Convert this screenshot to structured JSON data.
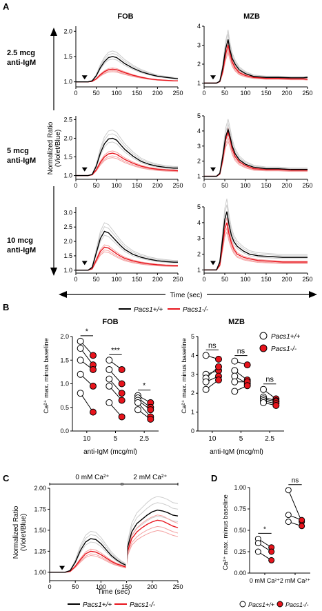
{
  "panel_labels": {
    "a": "A",
    "b": "B",
    "c": "C",
    "d": "D"
  },
  "panelA": {
    "columns": [
      "FOB",
      "MZB"
    ],
    "row_labels": [
      [
        "2.5 mcg",
        "anti-IgM"
      ],
      [
        "5 mcg",
        "anti-IgM"
      ],
      [
        "10 mcg",
        "anti-IgM"
      ]
    ],
    "y_axis_label": [
      "Normalized Ratio",
      "(Violet/Blue)"
    ],
    "x_axis_label": "Time (sec)",
    "legend": [
      {
        "label": "Pacs1+/+",
        "color": "#000000"
      },
      {
        "label": "Pacs1-/-",
        "color": "#e8141c"
      }
    ]
  },
  "panelB": {
    "titles": [
      "FOB",
      "MZB"
    ],
    "ylabel": "Ca²⁺ max. minus baseline",
    "xlabel": "anti-IgM (mcg/ml)",
    "legend": [
      "Pacs1+/+",
      "Pacs1-/-"
    ],
    "significance_fob": [
      "*",
      "***",
      "*"
    ],
    "significance_mzb": [
      "ns",
      "ns",
      "ns"
    ]
  },
  "panelC": {
    "brackets": [
      "0 mM Ca²⁺",
      "2 mM Ca²⁺"
    ],
    "ylabel": [
      "Normalized Ratio",
      "(Violet/Blue)"
    ],
    "xlabel": "Time (sec)",
    "legend": [
      "Pacs1+/+",
      "Pacs1-/-"
    ]
  },
  "panelD": {
    "ylabel": "Ca²⁺ max. minus baseline",
    "significance": [
      "*",
      "ns"
    ],
    "legend": [
      "Pacs1+/+",
      "Pacs1-/-"
    ]
  },
  "colors": {
    "wt": "#000000",
    "ko": "#e8141c",
    "wt_light": "#cccccc",
    "ko_light": "#f4a0a0"
  },
  "chart_data": [
    {
      "id": "A1",
      "type": "line",
      "title": "FOB",
      "xlim": [
        0,
        250
      ],
      "ylim": [
        0.9,
        2.1
      ],
      "yticks": [
        1.0,
        1.5,
        2.0
      ],
      "xticks": [
        0,
        50,
        100,
        150,
        200,
        250
      ],
      "stim_time": 35,
      "series": [
        {
          "name": "Pacs1+/+",
          "x": [
            0,
            30,
            40,
            50,
            60,
            70,
            80,
            90,
            100,
            110,
            120,
            140,
            160,
            180,
            200,
            220,
            240,
            250
          ],
          "y": [
            1.0,
            1.0,
            1.02,
            1.12,
            1.28,
            1.4,
            1.48,
            1.5,
            1.48,
            1.42,
            1.36,
            1.27,
            1.2,
            1.15,
            1.11,
            1.09,
            1.07,
            1.06
          ]
        },
        {
          "name": "Pacs1-/-",
          "x": [
            0,
            30,
            40,
            50,
            60,
            70,
            80,
            90,
            100,
            110,
            120,
            140,
            160,
            180,
            200,
            220,
            240,
            250
          ],
          "y": [
            1.0,
            1.0,
            1.01,
            1.06,
            1.14,
            1.2,
            1.24,
            1.25,
            1.24,
            1.21,
            1.18,
            1.13,
            1.09,
            1.06,
            1.04,
            1.03,
            1.02,
            1.02
          ]
        }
      ]
    },
    {
      "id": "A2",
      "type": "line",
      "title": "MZB",
      "xlim": [
        0,
        250
      ],
      "ylim": [
        0.8,
        4.0
      ],
      "yticks": [
        1,
        2,
        3,
        4
      ],
      "xticks": [
        0,
        50,
        100,
        150,
        200,
        250
      ],
      "stim_time": 35,
      "series": [
        {
          "name": "Pacs1+/+",
          "x": [
            0,
            30,
            38,
            45,
            52,
            58,
            62,
            68,
            75,
            85,
            100,
            120,
            150,
            180,
            210,
            240,
            250
          ],
          "y": [
            1.0,
            1.0,
            1.1,
            1.8,
            2.8,
            3.3,
            2.8,
            2.3,
            2.0,
            1.7,
            1.5,
            1.35,
            1.3,
            1.3,
            1.28,
            1.28,
            1.3
          ]
        },
        {
          "name": "Pacs1-/-",
          "x": [
            0,
            30,
            38,
            45,
            52,
            58,
            62,
            68,
            75,
            85,
            100,
            120,
            150,
            180,
            210,
            240,
            250
          ],
          "y": [
            1.0,
            1.0,
            1.08,
            1.6,
            2.5,
            3.0,
            2.6,
            2.1,
            1.8,
            1.55,
            1.4,
            1.3,
            1.25,
            1.25,
            1.22,
            1.22,
            1.2
          ]
        }
      ]
    },
    {
      "id": "A3",
      "type": "line",
      "title": "FOB",
      "xlim": [
        0,
        250
      ],
      "ylim": [
        0.9,
        2.6
      ],
      "yticks": [
        1.0,
        1.5,
        2.0,
        2.5
      ],
      "xticks": [
        0,
        50,
        100,
        150,
        200,
        250
      ],
      "stim_time": 35,
      "series": [
        {
          "name": "Pacs1+/+",
          "x": [
            0,
            30,
            40,
            50,
            60,
            70,
            80,
            90,
            100,
            110,
            120,
            140,
            160,
            180,
            200,
            220,
            240,
            250
          ],
          "y": [
            1.0,
            1.0,
            1.03,
            1.25,
            1.6,
            1.85,
            1.98,
            2.0,
            1.95,
            1.82,
            1.7,
            1.52,
            1.38,
            1.3,
            1.25,
            1.22,
            1.2,
            1.2
          ]
        },
        {
          "name": "Pacs1-/-",
          "x": [
            0,
            30,
            40,
            50,
            60,
            70,
            80,
            90,
            100,
            110,
            120,
            140,
            160,
            180,
            200,
            220,
            240,
            250
          ],
          "y": [
            1.0,
            1.0,
            1.02,
            1.15,
            1.35,
            1.5,
            1.58,
            1.6,
            1.57,
            1.5,
            1.43,
            1.33,
            1.25,
            1.2,
            1.17,
            1.15,
            1.14,
            1.13
          ]
        }
      ]
    },
    {
      "id": "A4",
      "type": "line",
      "title": "MZB",
      "xlim": [
        0,
        250
      ],
      "ylim": [
        0.8,
        5.0
      ],
      "yticks": [
        1,
        2,
        3,
        4,
        5
      ],
      "xticks": [
        0,
        50,
        100,
        150,
        200,
        250
      ],
      "stim_time": 35,
      "series": [
        {
          "name": "Pacs1+/+",
          "x": [
            0,
            30,
            38,
            45,
            52,
            58,
            63,
            68,
            75,
            85,
            100,
            120,
            150,
            180,
            210,
            240,
            250
          ],
          "y": [
            1.0,
            1.0,
            1.2,
            2.3,
            3.6,
            4.1,
            3.6,
            3.0,
            2.5,
            2.1,
            1.8,
            1.6,
            1.5,
            1.5,
            1.45,
            1.45,
            1.45
          ]
        },
        {
          "name": "Pacs1-/-",
          "x": [
            0,
            30,
            38,
            45,
            52,
            58,
            63,
            68,
            75,
            85,
            100,
            120,
            150,
            180,
            210,
            240,
            250
          ],
          "y": [
            1.0,
            1.0,
            1.15,
            2.1,
            3.4,
            3.9,
            3.4,
            2.8,
            2.3,
            1.95,
            1.7,
            1.5,
            1.45,
            1.45,
            1.4,
            1.4,
            1.4
          ]
        }
      ]
    },
    {
      "id": "A5",
      "type": "line",
      "title": "FOB",
      "xlim": [
        0,
        250
      ],
      "ylim": [
        0.9,
        3.2
      ],
      "yticks": [
        1.0,
        1.5,
        2.0,
        2.5,
        3.0
      ],
      "xticks": [
        0,
        50,
        100,
        150,
        200,
        250
      ],
      "stim_time": 35,
      "series": [
        {
          "name": "Pacs1+/+",
          "x": [
            0,
            30,
            40,
            50,
            60,
            70,
            80,
            90,
            100,
            110,
            120,
            140,
            160,
            180,
            200,
            220,
            240,
            250
          ],
          "y": [
            1.0,
            1.0,
            1.1,
            1.6,
            2.1,
            2.35,
            2.3,
            2.15,
            2.0,
            1.85,
            1.72,
            1.55,
            1.45,
            1.38,
            1.33,
            1.3,
            1.28,
            1.28
          ]
        },
        {
          "name": "Pacs1-/-",
          "x": [
            0,
            30,
            40,
            50,
            60,
            70,
            80,
            90,
            100,
            110,
            120,
            140,
            160,
            180,
            200,
            220,
            240,
            250
          ],
          "y": [
            1.0,
            1.0,
            1.05,
            1.35,
            1.65,
            1.8,
            1.77,
            1.67,
            1.57,
            1.48,
            1.41,
            1.32,
            1.26,
            1.22,
            1.19,
            1.17,
            1.16,
            1.16
          ]
        }
      ]
    },
    {
      "id": "A6",
      "type": "line",
      "title": "MZB",
      "xlim": [
        0,
        250
      ],
      "ylim": [
        0.8,
        5.0
      ],
      "yticks": [
        1,
        2,
        3,
        4,
        5
      ],
      "xticks": [
        0,
        50,
        100,
        150,
        200,
        250
      ],
      "stim_time": 35,
      "series": [
        {
          "name": "Pacs1+/+",
          "x": [
            0,
            30,
            38,
            44,
            50,
            55,
            60,
            66,
            72,
            80,
            95,
            110,
            130,
            160,
            190,
            220,
            250
          ],
          "y": [
            1.0,
            1.0,
            1.5,
            2.8,
            4.2,
            4.7,
            3.9,
            3.2,
            2.8,
            2.5,
            2.2,
            2.0,
            1.9,
            1.85,
            1.8,
            1.8,
            1.8
          ]
        },
        {
          "name": "Pacs1-/-",
          "x": [
            0,
            30,
            38,
            44,
            50,
            55,
            60,
            66,
            72,
            80,
            95,
            110,
            130,
            160,
            190,
            220,
            250
          ],
          "y": [
            1.0,
            1.0,
            1.3,
            2.4,
            3.6,
            4.0,
            3.3,
            2.7,
            2.3,
            2.0,
            1.8,
            1.7,
            1.6,
            1.55,
            1.5,
            1.5,
            1.5
          ]
        }
      ]
    },
    {
      "id": "B1",
      "type": "scatter",
      "title": "FOB",
      "ylabel": "Ca²⁺ max. minus baseline",
      "xlabel": "anti-IgM (mcg/ml)",
      "categories": [
        "10",
        "5",
        "2.5"
      ],
      "ylim": [
        0,
        2
      ],
      "yticks": [
        0.0,
        0.5,
        1.0,
        1.5,
        2.0
      ],
      "pairs": [
        [
          [
            1.9,
            1.6
          ],
          [
            1.75,
            1.4
          ],
          [
            1.5,
            1.3
          ],
          [
            1.2,
            0.95
          ],
          [
            0.8,
            0.4
          ]
        ],
        [
          [
            1.5,
            1.3
          ],
          [
            1.3,
            1.0
          ],
          [
            1.1,
            0.8
          ],
          [
            0.95,
            0.65
          ],
          [
            0.6,
            0.3
          ]
        ],
        [
          [
            0.75,
            0.6
          ],
          [
            0.7,
            0.5
          ],
          [
            0.65,
            0.45
          ],
          [
            0.6,
            0.3
          ],
          [
            0.45,
            0.25
          ]
        ]
      ]
    },
    {
      "id": "B2",
      "type": "scatter",
      "title": "MZB",
      "ylabel": "Ca²⁺ max. minus baseline",
      "xlabel": "anti-IgM (mcg/ml)",
      "categories": [
        "10",
        "5",
        "2.5"
      ],
      "ylim": [
        0,
        5
      ],
      "yticks": [
        0,
        1,
        2,
        3,
        4,
        5
      ],
      "pairs": [
        [
          [
            4.0,
            3.8
          ],
          [
            3.0,
            3.2
          ],
          [
            2.8,
            3.4
          ],
          [
            2.6,
            2.9
          ],
          [
            2.2,
            2.7
          ]
        ],
        [
          [
            3.7,
            3.5
          ],
          [
            3.2,
            2.7
          ],
          [
            2.9,
            2.5
          ],
          [
            2.6,
            2.6
          ],
          [
            2.1,
            2.4
          ]
        ],
        [
          [
            2.2,
            1.7
          ],
          [
            1.8,
            1.6
          ],
          [
            1.7,
            1.55
          ],
          [
            1.6,
            1.45
          ],
          [
            1.5,
            1.35
          ]
        ]
      ]
    },
    {
      "id": "C",
      "type": "line",
      "xlim": [
        0,
        250
      ],
      "ylim": [
        0.9,
        2.0
      ],
      "yticks": [
        1.0,
        1.25,
        1.5,
        1.75,
        2.0
      ],
      "xticks": [
        0,
        50,
        100,
        150,
        200,
        250
      ],
      "stim_time": 35,
      "switch_time": 150,
      "series": [
        {
          "name": "Pacs1+/+",
          "x": [
            0,
            30,
            40,
            50,
            60,
            70,
            80,
            90,
            100,
            110,
            120,
            130,
            140,
            150,
            152,
            160,
            170,
            180,
            190,
            200,
            210,
            220,
            230,
            240,
            250
          ],
          "y": [
            1.0,
            1.0,
            1.02,
            1.12,
            1.26,
            1.36,
            1.4,
            1.39,
            1.34,
            1.27,
            1.2,
            1.15,
            1.11,
            1.08,
            1.3,
            1.48,
            1.58,
            1.63,
            1.68,
            1.72,
            1.74,
            1.73,
            1.71,
            1.68,
            1.67
          ]
        },
        {
          "name": "Pacs1-/-",
          "x": [
            0,
            30,
            40,
            50,
            60,
            70,
            80,
            90,
            100,
            110,
            120,
            130,
            140,
            150,
            152,
            160,
            170,
            180,
            190,
            200,
            210,
            220,
            230,
            240,
            250
          ],
          "y": [
            1.0,
            1.0,
            1.01,
            1.07,
            1.15,
            1.22,
            1.25,
            1.24,
            1.21,
            1.17,
            1.13,
            1.1,
            1.08,
            1.06,
            1.25,
            1.4,
            1.48,
            1.53,
            1.57,
            1.6,
            1.62,
            1.61,
            1.58,
            1.55,
            1.53
          ]
        }
      ]
    },
    {
      "id": "D",
      "type": "scatter",
      "ylabel": "Ca²⁺ max. minus baseline",
      "categories": [
        "0 mM Ca²⁺",
        "2 mM Ca²⁺"
      ],
      "ylim": [
        0,
        1.0
      ],
      "yticks": [
        0.0,
        0.25,
        0.5,
        0.75,
        1.0
      ],
      "pairs": [
        [
          [
            0.4,
            0.3
          ],
          [
            0.35,
            0.25
          ],
          [
            0.25,
            0.15
          ]
        ],
        [
          [
            0.97,
            0.6
          ],
          [
            0.68,
            0.62
          ],
          [
            0.6,
            0.55
          ]
        ]
      ]
    }
  ]
}
